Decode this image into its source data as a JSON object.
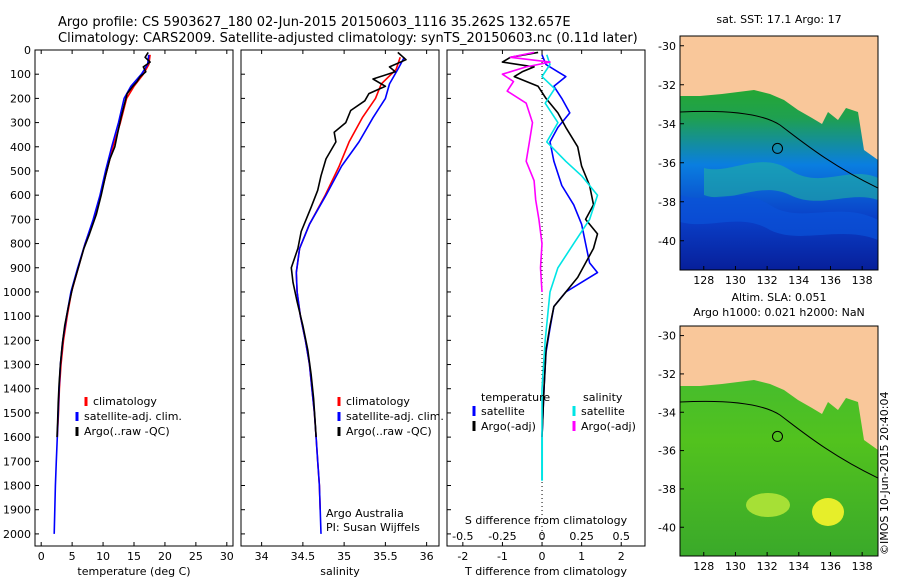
{
  "header": {
    "title_line1": "Argo profile: CS 5903627_180 02-Jun-2015 20150603_1116 35.262S 132.657E",
    "title_line2": "Climatology: CARS2009. Satellite-adjusted climatology: synTS_20150603.nc (0.11d later)"
  },
  "colors": {
    "climatology": "#ff0000",
    "satellite": "#0000ff",
    "argo": "#000000",
    "satellite_salinity": "#00e5e5",
    "argo_salinity_adj": "#ff00ff",
    "land": "#f9c79a"
  },
  "chart_data": [
    {
      "id": "temperature",
      "type": "line",
      "xlabel": "temperature (deg C)",
      "ylabel": "",
      "xlim": [
        -1,
        31
      ],
      "ylim": [
        2050,
        0
      ],
      "xticks": [
        "0",
        "5",
        "10",
        "15",
        "20",
        "25",
        "30"
      ],
      "yticks": [
        "0",
        "100",
        "200",
        "300",
        "400",
        "500",
        "600",
        "700",
        "800",
        "900",
        "1000",
        "1100",
        "1200",
        "1300",
        "1400",
        "1500",
        "1600",
        "1700",
        "1800",
        "1900",
        "2000"
      ],
      "legend": [
        "climatology",
        "satellite-adj. clim.",
        "Argo(..raw -QC)"
      ],
      "series": [
        {
          "name": "climatology",
          "color": "climatology",
          "points": [
            [
              17.6,
              20
            ],
            [
              17.4,
              60
            ],
            [
              16.5,
              100
            ],
            [
              15,
              150
            ],
            [
              13.8,
              200
            ],
            [
              12.8,
              300
            ],
            [
              11.6,
              400
            ],
            [
              10.6,
              500
            ],
            [
              9.6,
              600
            ],
            [
              8.5,
              700
            ],
            [
              7.1,
              800
            ],
            [
              6,
              900
            ],
            [
              4.9,
              1000
            ],
            [
              4.2,
              1100
            ],
            [
              3.6,
              1200
            ],
            [
              3.2,
              1300
            ],
            [
              2.95,
              1400
            ],
            [
              2.8,
              1500
            ],
            [
              2.6,
              1600
            ]
          ]
        },
        {
          "name": "satellite",
          "color": "satellite",
          "points": [
            [
              17.4,
              20
            ],
            [
              17.2,
              60
            ],
            [
              16.2,
              100
            ],
            [
              14.5,
              150
            ],
            [
              13.4,
              200
            ],
            [
              12.5,
              300
            ],
            [
              11.4,
              400
            ],
            [
              10.4,
              500
            ],
            [
              9.5,
              600
            ],
            [
              8.4,
              700
            ],
            [
              7.1,
              800
            ],
            [
              5.9,
              900
            ],
            [
              4.8,
              1000
            ],
            [
              4.1,
              1100
            ],
            [
              3.5,
              1200
            ],
            [
              3.1,
              1300
            ],
            [
              2.9,
              1400
            ],
            [
              2.75,
              1500
            ],
            [
              2.6,
              1600
            ],
            [
              2.45,
              1700
            ],
            [
              2.3,
              1800
            ],
            [
              2.2,
              1900
            ],
            [
              2.1,
              2000
            ]
          ]
        },
        {
          "name": "argo",
          "color": "argo",
          "points": [
            [
              17.3,
              10
            ],
            [
              16.8,
              30
            ],
            [
              17.6,
              50
            ],
            [
              16.5,
              70
            ],
            [
              16.9,
              90
            ],
            [
              16,
              110
            ],
            [
              15.5,
              130
            ],
            [
              14.8,
              150
            ],
            [
              13.9,
              180
            ],
            [
              13.5,
              220
            ],
            [
              12.9,
              280
            ],
            [
              12.3,
              350
            ],
            [
              11.9,
              400
            ],
            [
              11.1,
              450
            ],
            [
              10.4,
              520
            ],
            [
              9.7,
              600
            ],
            [
              8.9,
              680
            ],
            [
              7.8,
              760
            ],
            [
              6.9,
              820
            ],
            [
              6,
              900
            ],
            [
              5.1,
              980
            ],
            [
              4.4,
              1060
            ],
            [
              3.8,
              1140
            ],
            [
              3.4,
              1220
            ],
            [
              3.1,
              1300
            ],
            [
              2.9,
              1380
            ],
            [
              2.75,
              1460
            ],
            [
              2.65,
              1540
            ],
            [
              2.55,
              1600
            ]
          ]
        }
      ]
    },
    {
      "id": "salinity",
      "type": "line",
      "xlabel": "salinity",
      "ylabel": "",
      "xlim": [
        33.75,
        36.15
      ],
      "ylim": [
        2050,
        0
      ],
      "xticks": [
        "34",
        "34.5",
        "35",
        "35.5",
        "36"
      ],
      "legend": [
        "climatology",
        "satellite-adj. clim.",
        "Argo(..raw -QC)"
      ],
      "annotations": [
        "Argo Australia",
        "PI: Susan Wijffels"
      ],
      "series": [
        {
          "name": "climatology",
          "color": "climatology",
          "points": [
            [
              35.68,
              30
            ],
            [
              35.63,
              80
            ],
            [
              35.45,
              140
            ],
            [
              35.38,
              200
            ],
            [
              35.22,
              280
            ],
            [
              35.06,
              380
            ],
            [
              34.94,
              480
            ],
            [
              34.77,
              600
            ],
            [
              34.58,
              720
            ],
            [
              34.46,
              820
            ],
            [
              34.42,
              920
            ],
            [
              34.43,
              1000
            ],
            [
              34.47,
              1100
            ],
            [
              34.53,
              1200
            ],
            [
              34.58,
              1300
            ],
            [
              34.61,
              1400
            ],
            [
              34.64,
              1500
            ],
            [
              34.66,
              1600
            ],
            [
              34.68,
              1700
            ],
            [
              34.7,
              1800
            ],
            [
              34.71,
              1900
            ]
          ]
        },
        {
          "name": "satellite",
          "color": "satellite",
          "points": [
            [
              35.73,
              30
            ],
            [
              35.65,
              80
            ],
            [
              35.55,
              140
            ],
            [
              35.5,
              200
            ],
            [
              35.35,
              280
            ],
            [
              35.18,
              380
            ],
            [
              34.97,
              480
            ],
            [
              34.78,
              600
            ],
            [
              34.58,
              720
            ],
            [
              34.46,
              820
            ],
            [
              34.42,
              920
            ],
            [
              34.43,
              1000
            ],
            [
              34.47,
              1100
            ],
            [
              34.53,
              1200
            ],
            [
              34.58,
              1300
            ],
            [
              34.61,
              1400
            ],
            [
              34.64,
              1500
            ],
            [
              34.66,
              1600
            ],
            [
              34.68,
              1700
            ],
            [
              34.7,
              1800
            ],
            [
              34.71,
              1900
            ],
            [
              34.72,
              2000
            ]
          ]
        },
        {
          "name": "argo",
          "color": "argo",
          "points": [
            [
              35.65,
              10
            ],
            [
              35.75,
              40
            ],
            [
              35.55,
              70
            ],
            [
              35.62,
              90
            ],
            [
              35.35,
              120
            ],
            [
              35.5,
              150
            ],
            [
              35.3,
              180
            ],
            [
              35.25,
              210
            ],
            [
              35.08,
              250
            ],
            [
              35.02,
              300
            ],
            [
              34.88,
              340
            ],
            [
              34.9,
              380
            ],
            [
              34.78,
              450
            ],
            [
              34.72,
              520
            ],
            [
              34.68,
              580
            ],
            [
              34.6,
              650
            ],
            [
              34.48,
              750
            ],
            [
              34.44,
              820
            ],
            [
              34.36,
              900
            ],
            [
              34.38,
              960
            ],
            [
              34.43,
              1040
            ],
            [
              34.5,
              1140
            ],
            [
              34.56,
              1240
            ],
            [
              34.6,
              1340
            ],
            [
              34.63,
              1440
            ],
            [
              34.65,
              1540
            ],
            [
              34.66,
              1600
            ]
          ]
        }
      ]
    },
    {
      "id": "difference",
      "type": "line",
      "xlabel": "T difference from climatology",
      "xlabel_top": "S difference from climatology",
      "xlim": [
        -2.4,
        2.6
      ],
      "ylim": [
        2050,
        0
      ],
      "xticks": [
        "-2",
        "-1",
        "0",
        "1",
        "2"
      ],
      "xticks_top": [
        "-0.5",
        "-0.25",
        "0",
        "0.25",
        "0.5"
      ],
      "legend_left_title": "temperature",
      "legend_right_title": "salinity",
      "legend": [
        "satellite",
        "Argo(-adj)",
        "satellite",
        "Argo(-adj)"
      ],
      "series": [
        {
          "name": "T satellite",
          "color": "satellite",
          "points": [
            [
              0,
              20
            ],
            [
              0.1,
              60
            ],
            [
              0.4,
              90
            ],
            [
              0.6,
              110
            ],
            [
              0.3,
              150
            ],
            [
              0.5,
              200
            ],
            [
              0.7,
              260
            ],
            [
              0.4,
              320
            ],
            [
              0.2,
              380
            ],
            [
              0.3,
              460
            ],
            [
              0.5,
              560
            ],
            [
              0.8,
              640
            ],
            [
              1.0,
              720
            ],
            [
              1.1,
              800
            ],
            [
              1.2,
              880
            ],
            [
              1.4,
              920
            ],
            [
              1.0,
              960
            ],
            [
              0.6,
              1000
            ],
            [
              0.3,
              1060
            ],
            [
              0.2,
              1150
            ],
            [
              0.1,
              1250
            ],
            [
              0.05,
              1400
            ],
            [
              0,
              1600
            ]
          ]
        },
        {
          "name": "T argo",
          "color": "argo",
          "points": [
            [
              -0.1,
              10
            ],
            [
              -0.8,
              30
            ],
            [
              -1.0,
              50
            ],
            [
              -0.2,
              70
            ],
            [
              -0.5,
              90
            ],
            [
              -0.7,
              110
            ],
            [
              -0.1,
              150
            ],
            [
              0.1,
              200
            ],
            [
              0.4,
              260
            ],
            [
              0.6,
              320
            ],
            [
              0.9,
              400
            ],
            [
              1.0,
              480
            ],
            [
              1.2,
              560
            ],
            [
              1.3,
              640
            ],
            [
              1.1,
              700
            ],
            [
              1.4,
              760
            ],
            [
              1.3,
              820
            ],
            [
              1.1,
              880
            ],
            [
              0.9,
              940
            ],
            [
              0.6,
              1000
            ],
            [
              0.3,
              1060
            ],
            [
              0.2,
              1140
            ],
            [
              0.1,
              1240
            ],
            [
              0.05,
              1400
            ],
            [
              0,
              1600
            ]
          ]
        },
        {
          "name": "S satellite",
          "color": "satellite_salinity",
          "points": [
            [
              0.03,
              20
            ],
            [
              0.05,
              60
            ],
            [
              0.0,
              110
            ],
            [
              0.08,
              160
            ],
            [
              0.02,
              220
            ],
            [
              0.1,
              300
            ],
            [
              0.03,
              380
            ],
            [
              0.15,
              460
            ],
            [
              0.25,
              520
            ],
            [
              0.35,
              600
            ],
            [
              0.3,
              700
            ],
            [
              0.2,
              800
            ],
            [
              0.1,
              900
            ],
            [
              0.05,
              1000
            ],
            [
              0.02,
              1200
            ],
            [
              0,
              1400
            ],
            [
              0,
              1600
            ]
          ]
        },
        {
          "name": "S argo",
          "color": "argo_salinity_adj",
          "points": [
            [
              -0.05,
              10
            ],
            [
              -0.2,
              30
            ],
            [
              0.05,
              50
            ],
            [
              -0.1,
              70
            ],
            [
              -0.25,
              100
            ],
            [
              -0.18,
              130
            ],
            [
              -0.22,
              170
            ],
            [
              -0.1,
              220
            ],
            [
              -0.06,
              300
            ],
            [
              -0.08,
              380
            ],
            [
              -0.1,
              460
            ],
            [
              -0.05,
              540
            ],
            [
              -0.04,
              620
            ],
            [
              -0.02,
              700
            ],
            [
              0,
              800
            ],
            [
              -0.01,
              900
            ],
            [
              0,
              1000
            ]
          ]
        }
      ]
    },
    {
      "id": "sst_map",
      "type": "heatmap",
      "title": "sat. SST: 17.1 Argo: 17",
      "xticks": [
        "128",
        "130",
        "132",
        "134",
        "136",
        "138"
      ],
      "yticks": [
        "-30",
        "-32",
        "-34",
        "-36",
        "-38",
        "-40"
      ],
      "lon_range": [
        126.5,
        139
      ],
      "lat_range": [
        -41.5,
        -29.5
      ],
      "marker": [
        132.657,
        -35.262
      ]
    },
    {
      "id": "sla_map",
      "type": "heatmap",
      "title_line1": "Altim. SLA: 0.051",
      "title_line2": "Argo h1000: 0.021 h2000: NaN",
      "xticks": [
        "128",
        "130",
        "132",
        "134",
        "136",
        "138"
      ],
      "yticks": [
        "-30",
        "-32",
        "-34",
        "-36",
        "-38",
        "-40"
      ],
      "lon_range": [
        126.5,
        139
      ],
      "lat_range": [
        -41.5,
        -29.5
      ],
      "marker": [
        132.657,
        -35.262
      ]
    }
  ],
  "footer": {
    "vertical_stamp": "©IMOS 10-Jun-2015 20:40:04"
  }
}
